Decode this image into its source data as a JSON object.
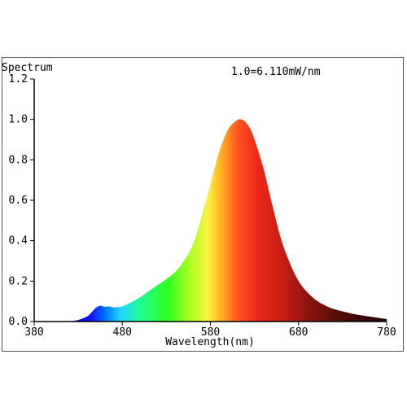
{
  "chart_data": {
    "type": "area",
    "title": "Spectrum",
    "annotation": "1.0=6.110mW/nm",
    "xlabel": "Wavelength(nm)",
    "ylabel": "",
    "xlim": [
      380,
      780
    ],
    "ylim": [
      0,
      1.2
    ],
    "x_ticks": [
      "380",
      "480",
      "580",
      "680",
      "780"
    ],
    "y_ticks": [
      "0.0",
      "0.2",
      "0.4",
      "0.6",
      "0.8",
      "1.0",
      "1.2"
    ],
    "grid": false,
    "legend": "none",
    "fill": "spectral-rainbow",
    "series": [
      {
        "x": [
          380,
          400,
          420,
          430,
          440,
          445,
          450,
          455,
          460,
          465,
          470,
          475,
          480,
          490,
          500,
          510,
          520,
          530,
          540,
          550,
          560,
          570,
          580,
          590,
          600,
          610,
          615,
          620,
          625,
          630,
          640,
          650,
          660,
          670,
          680,
          690,
          700,
          710,
          720,
          740,
          760,
          780
        ],
        "values": [
          0.0,
          0.0,
          0.002,
          0.008,
          0.025,
          0.045,
          0.068,
          0.078,
          0.073,
          0.075,
          0.07,
          0.072,
          0.075,
          0.095,
          0.12,
          0.15,
          0.18,
          0.21,
          0.245,
          0.3,
          0.38,
          0.52,
          0.68,
          0.84,
          0.95,
          0.995,
          1.0,
          0.985,
          0.955,
          0.9,
          0.76,
          0.58,
          0.41,
          0.29,
          0.2,
          0.145,
          0.105,
          0.08,
          0.062,
          0.04,
          0.025,
          0.012
        ]
      }
    ],
    "colors": {
      "frame": "#555555",
      "axis": "#000000",
      "text": "#000000"
    }
  }
}
